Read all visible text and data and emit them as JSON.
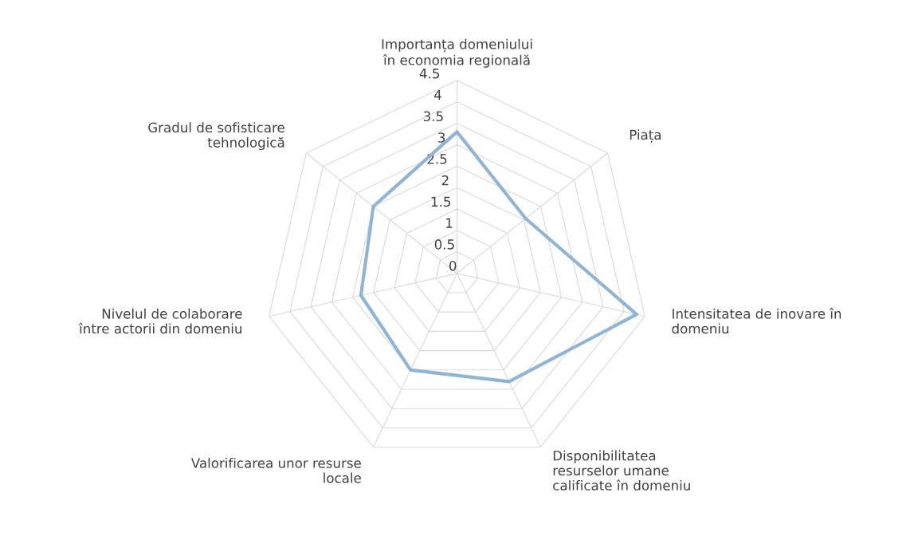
{
  "chart_data": {
    "type": "radar",
    "categories": [
      "Importanța domeniului\nîn economia regională",
      "Piața",
      "Intensitatea de inovare în\ndomeniu",
      "Disponibilitatea\nresurselor umane\ncalificate în domeniu",
      "Valorificarea unor resurse\nlocale",
      "Nivelul de colaborare\nîntre actorii din domeniu",
      "Gradul de sofisticare\ntehnologică"
    ],
    "series": [
      {
        "color": "#8fb4d6",
        "values": [
          3.3,
          2.05,
          4.3,
          2.8,
          2.5,
          2.3,
          2.5
        ]
      }
    ],
    "ylim": [
      0,
      4.5
    ],
    "yticks": [
      0,
      0.5,
      1,
      1.5,
      2,
      2.5,
      3,
      3.5,
      4,
      4.5
    ],
    "grid": true,
    "marker": "none",
    "line_style": "solid"
  }
}
